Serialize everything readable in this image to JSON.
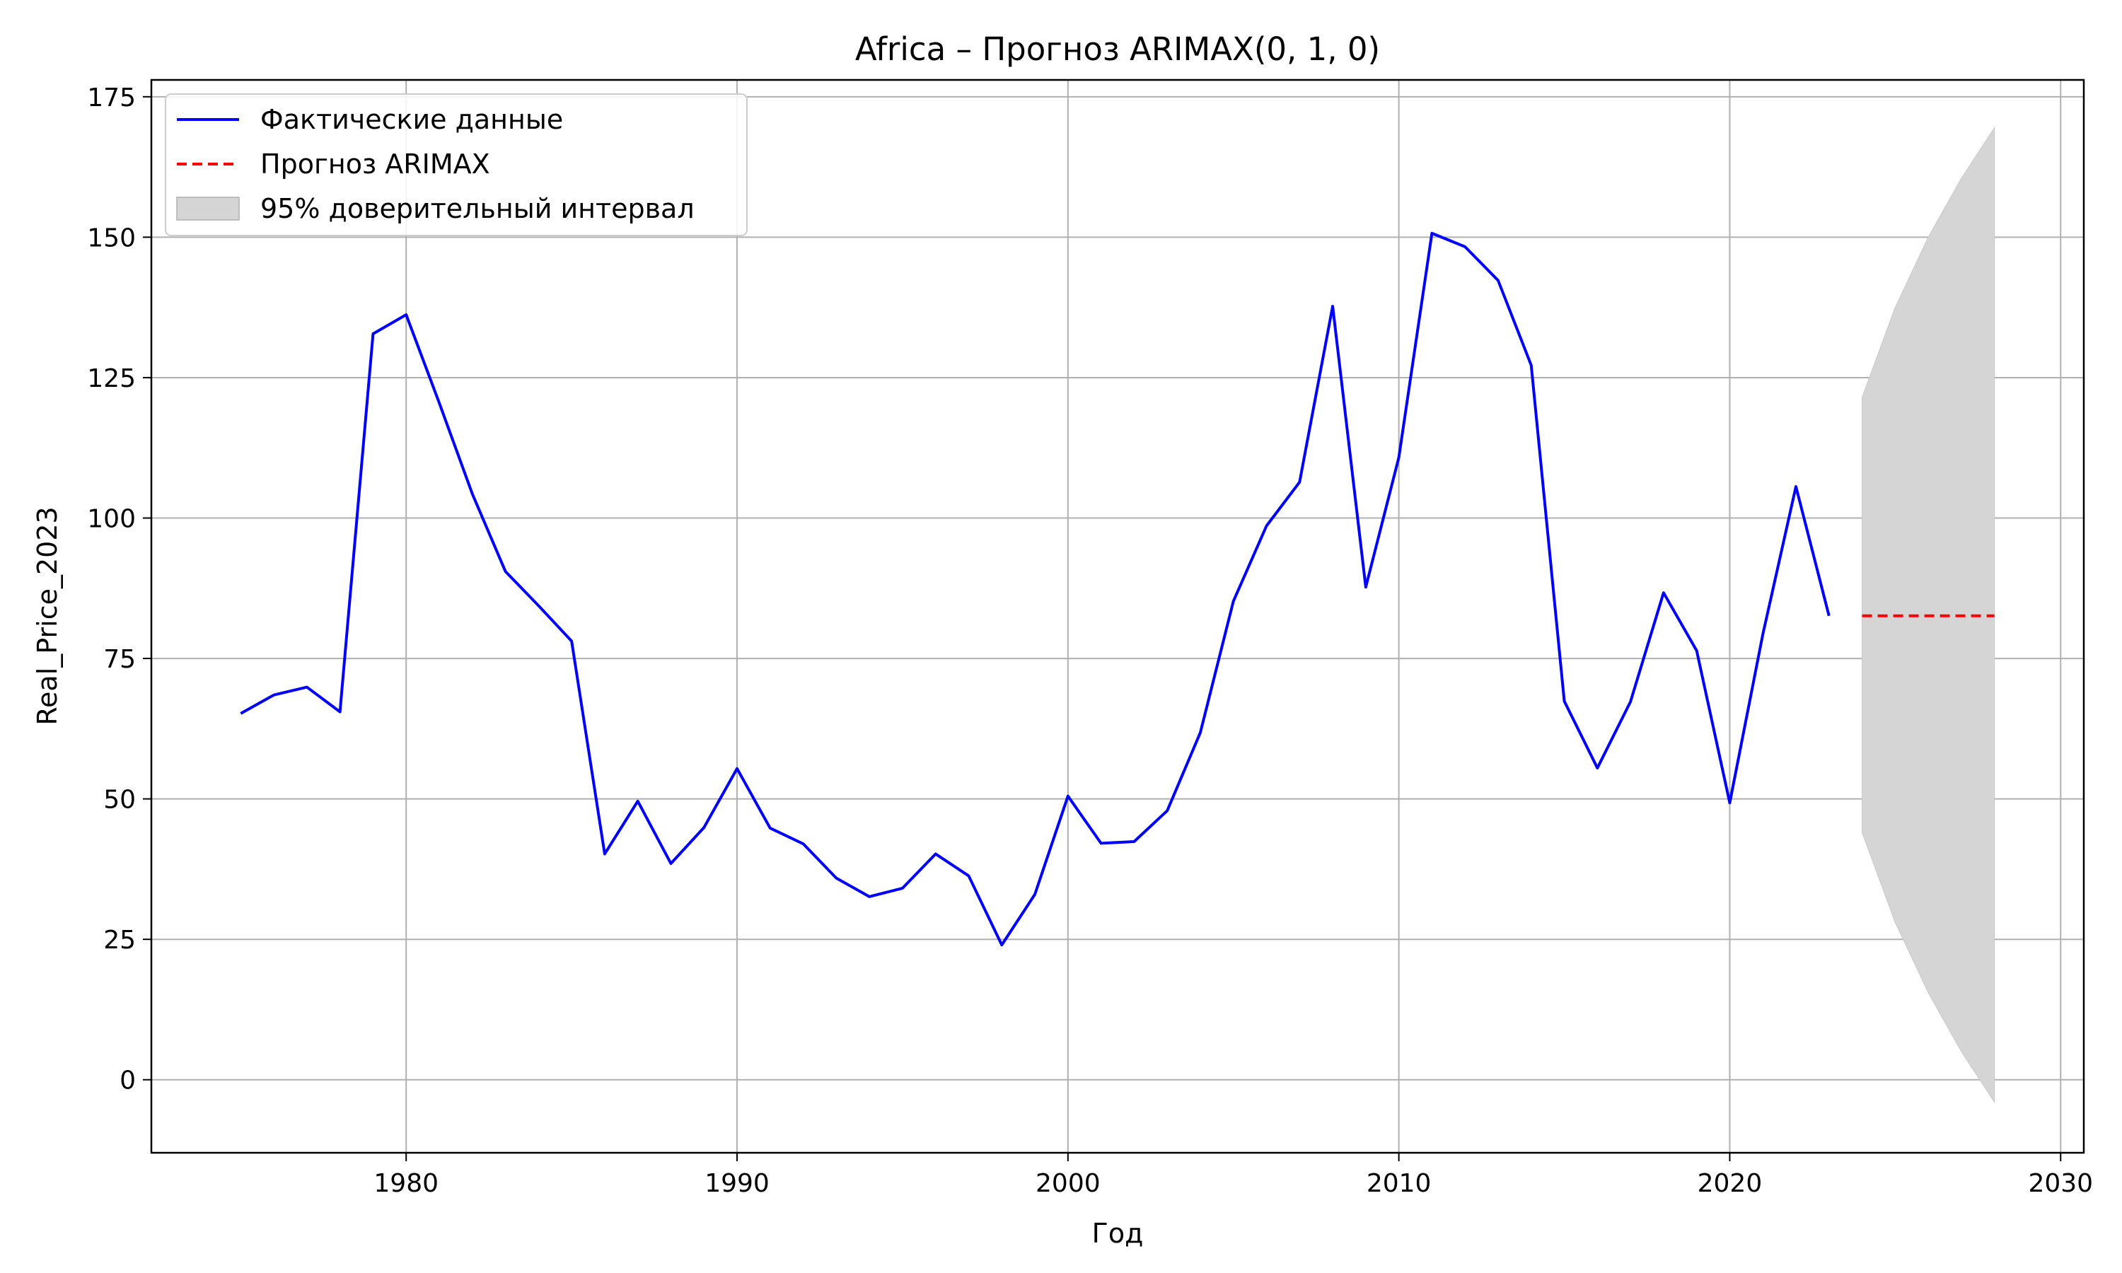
{
  "chart_data": {
    "type": "line",
    "title": "Africa – Прогноз ARIMAX(0, 1, 0)",
    "xlabel": "Год",
    "ylabel": "Real_Price_2023",
    "xlim": [
      1972.3,
      2030.7
    ],
    "ylim": [
      -13,
      178
    ],
    "xticks": [
      1980,
      1990,
      2000,
      2010,
      2020,
      2030
    ],
    "yticks": [
      0,
      25,
      50,
      75,
      100,
      125,
      150,
      175
    ],
    "grid": true,
    "legend_position": "top-left",
    "colors": {
      "actual": "#0000ff",
      "forecast": "#ff0000",
      "ci": "#d5d5d5"
    },
    "series": [
      {
        "name": "Фактические данные",
        "style": "solid",
        "x": [
          1975,
          1976,
          1977,
          1978,
          1979,
          1980,
          1981,
          1982,
          1983,
          1984,
          1985,
          1986,
          1987,
          1988,
          1989,
          1990,
          1991,
          1992,
          1993,
          1994,
          1995,
          1996,
          1997,
          1998,
          1999,
          2000,
          2001,
          2002,
          2003,
          2004,
          2005,
          2006,
          2007,
          2008,
          2009,
          2010,
          2011,
          2012,
          2013,
          2014,
          2015,
          2016,
          2017,
          2018,
          2019,
          2020,
          2021,
          2022,
          2023
        ],
        "y": [
          65.2,
          68.5,
          69.9,
          65.5,
          132.8,
          136.2,
          120.5,
          104.3,
          90.5,
          84.4,
          78.1,
          40.2,
          49.6,
          38.5,
          44.9,
          55.4,
          44.8,
          42.0,
          35.9,
          32.6,
          34.1,
          40.2,
          36.3,
          24.0,
          33.0,
          50.5,
          42.1,
          42.4,
          47.9,
          61.8,
          85.2,
          98.6,
          106.4,
          137.7,
          87.7,
          110.8,
          150.7,
          148.3,
          142.3,
          127.2,
          67.4,
          55.5,
          67.3,
          86.7,
          76.4,
          49.3,
          79.3,
          105.6,
          82.6
        ]
      },
      {
        "name": "Прогноз ARIMAX",
        "style": "dashed",
        "x": [
          2024,
          2025,
          2026,
          2027,
          2028
        ],
        "y": [
          82.6,
          82.6,
          82.6,
          82.6,
          82.6
        ]
      }
    ],
    "confidence_interval": {
      "name": "95% доверительный интервал",
      "x": [
        2024,
        2025,
        2026,
        2027,
        2028
      ],
      "lower": [
        44.0,
        28.0,
        15.5,
        5.0,
        -4.0
      ],
      "upper": [
        121.5,
        137.5,
        150.0,
        160.5,
        169.5
      ]
    }
  }
}
